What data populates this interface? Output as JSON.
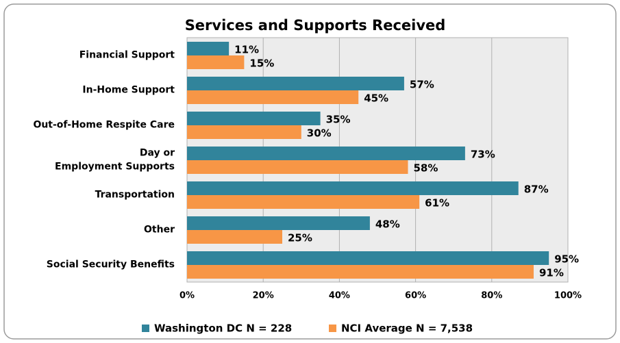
{
  "chart_data": {
    "type": "hbar",
    "title": "Services and Supports Received",
    "categories": [
      "Financial Support",
      "In-Home Support",
      "Out-of-Home Respite Care",
      "Day or Employment Supports",
      "Transportation",
      "Other",
      "Social Security Benefits"
    ],
    "series": [
      {
        "name": "Washington DC N = 228",
        "color": "#31849b",
        "values": [
          11,
          57,
          35,
          73,
          87,
          48,
          95
        ],
        "value_labels": [
          "11%",
          "57%",
          "35%",
          "73%",
          "87%",
          "48%",
          "95%"
        ]
      },
      {
        "name": "NCI Average N = 7,538",
        "color": "#f79646",
        "values": [
          15,
          45,
          30,
          58,
          61,
          25,
          91
        ],
        "value_labels": [
          "15%",
          "45%",
          "30%",
          "58%",
          "61%",
          "25%",
          "91%"
        ]
      }
    ],
    "xlim": [
      0,
      100
    ],
    "xticks": [
      {
        "value": 0,
        "label": "0%"
      },
      {
        "value": 20,
        "label": "20%"
      },
      {
        "value": 40,
        "label": "40%"
      },
      {
        "value": 60,
        "label": "60%"
      },
      {
        "value": 80,
        "label": "80%"
      },
      {
        "value": 100,
        "label": "100%"
      }
    ],
    "grid": true,
    "legend": "bottom"
  }
}
